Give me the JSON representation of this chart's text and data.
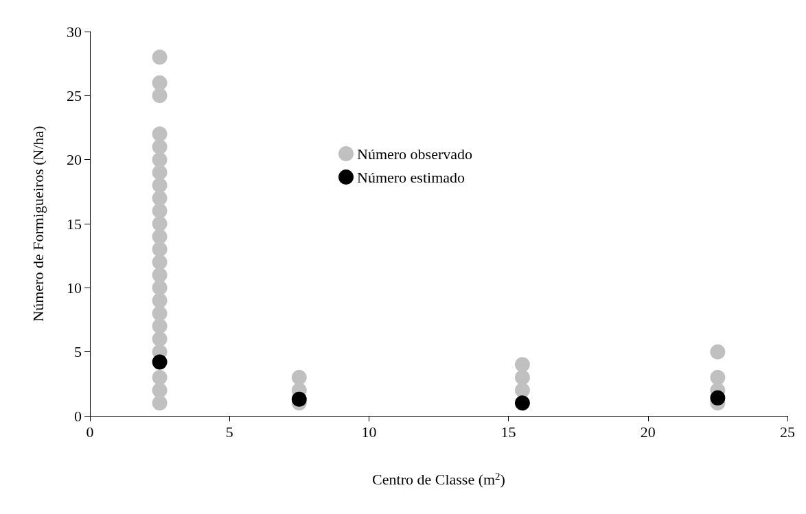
{
  "chart_data": {
    "type": "scatter",
    "xlabel": "Centro de Classe (m$^{2}$)",
    "ylabel": "Número de Formigueiros (N/ha)",
    "xlim": [
      0,
      25
    ],
    "xticks": [
      0,
      5,
      10,
      15,
      20,
      25
    ],
    "ylim": [
      0,
      30
    ],
    "yticks": [
      0,
      5,
      10,
      15,
      20,
      25,
      30
    ],
    "grid": false,
    "legend": "top",
    "marker": "circle",
    "series": [
      {
        "name": "Número observado",
        "color": "#c0c0c0",
        "x": [
          2.5,
          2.5,
          2.5,
          2.5,
          2.5,
          2.5,
          2.5,
          2.5,
          2.5,
          2.5,
          2.5,
          2.5,
          2.5,
          2.5,
          2.5,
          2.5,
          2.5,
          2.5,
          2.5,
          2.5,
          2.5,
          2.5,
          2.5,
          2.5,
          7.5,
          7.5,
          7.5,
          15.5,
          15.5,
          15.5,
          22.5,
          22.5,
          22.5,
          22.5
        ],
        "values": [
          1,
          2,
          3,
          5,
          6,
          7,
          8,
          9,
          10,
          11,
          12,
          13,
          14,
          15,
          16,
          17,
          18,
          19,
          20,
          21,
          22,
          25,
          26,
          28,
          1,
          2,
          3,
          2,
          3,
          4,
          1,
          2,
          3,
          5
        ]
      },
      {
        "name": "Número estimado",
        "color": "#000000",
        "x": [
          2.5,
          7.5,
          15.5,
          22.5
        ],
        "values": [
          4.2,
          1.3,
          1.0,
          1.4
        ]
      }
    ]
  }
}
